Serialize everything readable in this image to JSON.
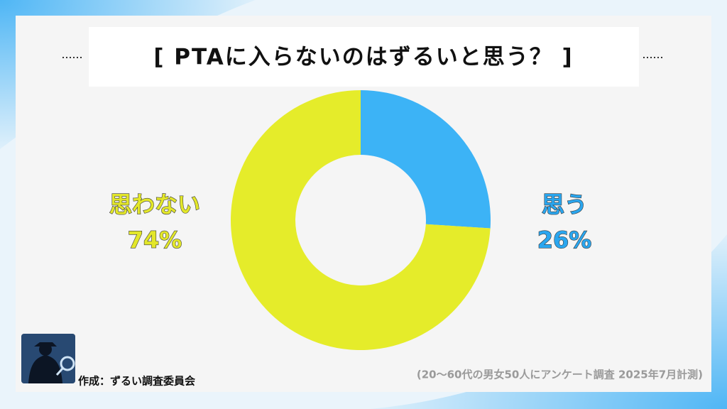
{
  "chart_data": {
    "type": "pie",
    "donut": true,
    "title": "[ PTAに入らないのはずるいと思う？ ]",
    "categories": [
      "思う",
      "思わない"
    ],
    "values": [
      26,
      74
    ],
    "value_labels": [
      "26%",
      "74%"
    ],
    "colors": [
      "#3cb3f6",
      "#e5ec2a"
    ],
    "label_colors": [
      "#2aa6ef",
      "#e3e72a"
    ],
    "credit": "作成：ずるい調査委員会",
    "note": "(20〜60代の男女50人にアンケート調査 2025年7月計測)"
  }
}
